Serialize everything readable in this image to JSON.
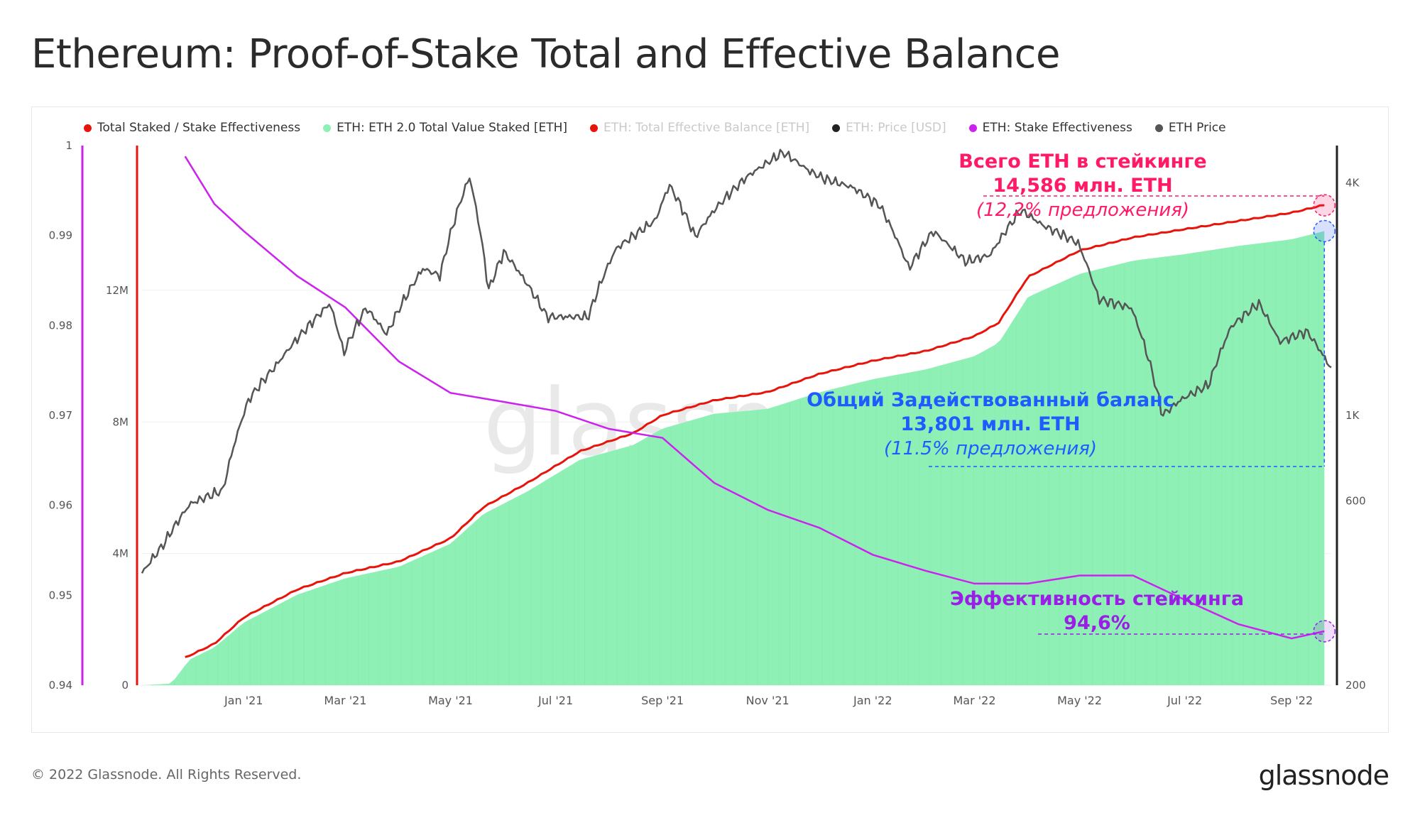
{
  "title": "Ethereum: Proof-of-Stake Total and Effective Balance",
  "footer": {
    "copyright": "© 2022 Glassnode. All Rights Reserved.",
    "brand": "glassnode"
  },
  "watermark": "glassnode",
  "legend": [
    {
      "label": "Total Staked / Stake Effectiveness",
      "color": "#e8140c",
      "dim": false
    },
    {
      "label": "ETH: ETH 2.0 Total Value Staked [ETH]",
      "color": "#8ff0b6",
      "dim": false
    },
    {
      "label": "ETH: Total Effective Balance [ETH]",
      "color": "#e8140c",
      "dim": true
    },
    {
      "label": "ETH: Price [USD]",
      "color": "#222222",
      "dim": true
    },
    {
      "label": "ETH: Stake Effectiveness",
      "color": "#cc22ee",
      "dim": false
    },
    {
      "label": "ETH Price",
      "color": "#555555",
      "dim": false
    }
  ],
  "annotations": {
    "total": {
      "line1": "Всего ETH в стейкинге",
      "line2": "14,586 млн. ETH",
      "line3": "(12,2% предложения)",
      "color": "#ff1a66"
    },
    "effective": {
      "line1": "Общий Задействованный баланс",
      "line2": "13,801 млн. ETH",
      "line3": "(11.5% предложения)",
      "color": "#1f5bff"
    },
    "efficiency": {
      "line1": "Эффективность стейкинга",
      "line2": "94,6%",
      "color": "#9b1ee6"
    }
  },
  "chart_data": {
    "type": "area+line",
    "x_range": [
      "2020-11-03",
      "2022-09-24"
    ],
    "x_ticks": [
      {
        "label": "Jan '21",
        "date": "2021-01-01"
      },
      {
        "label": "Mar '21",
        "date": "2021-03-01"
      },
      {
        "label": "May '21",
        "date": "2021-05-01"
      },
      {
        "label": "Jul '21",
        "date": "2021-07-01"
      },
      {
        "label": "Sep '21",
        "date": "2021-09-01"
      },
      {
        "label": "Nov '21",
        "date": "2021-11-01"
      },
      {
        "label": "Jan '22",
        "date": "2022-01-01"
      },
      {
        "label": "Mar '22",
        "date": "2022-03-01"
      },
      {
        "label": "May '22",
        "date": "2022-05-01"
      },
      {
        "label": "Jul '22",
        "date": "2022-07-01"
      },
      {
        "label": "Sep '22",
        "date": "2022-09-01"
      }
    ],
    "axes": {
      "effectiveness": {
        "side": "far-left",
        "range": [
          0.94,
          1.0
        ],
        "ticks": [
          "0.94",
          "0.95",
          "0.96",
          "0.97",
          "0.98",
          "0.99",
          "1"
        ]
      },
      "staked": {
        "side": "left",
        "range": [
          0,
          16400000
        ],
        "ticks": [
          {
            "v": 0,
            "label": "0"
          },
          {
            "v": 4000000,
            "label": "4M"
          },
          {
            "v": 8000000,
            "label": "8M"
          },
          {
            "v": 12000000,
            "label": "12M"
          }
        ]
      },
      "price": {
        "side": "right",
        "scale": "log",
        "range": [
          200,
          5000
        ],
        "ticks": [
          {
            "v": 200,
            "label": "200"
          },
          {
            "v": 600,
            "label": "600"
          },
          {
            "v": 1000,
            "label": "1K"
          },
          {
            "v": 4000,
            "label": "4K"
          }
        ]
      }
    },
    "series": [
      {
        "name": "ETH: ETH 2.0 Total Value Staked [ETH]",
        "type": "area",
        "color": "#8ff0b6",
        "points": [
          [
            "2020-11-03",
            0
          ],
          [
            "2020-11-20",
            50000
          ],
          [
            "2020-11-28",
            600000
          ],
          [
            "2020-12-01",
            790000
          ],
          [
            "2020-12-15",
            1150000
          ],
          [
            "2021-01-01",
            1900000
          ],
          [
            "2021-02-01",
            2750000
          ],
          [
            "2021-03-01",
            3250000
          ],
          [
            "2021-04-01",
            3600000
          ],
          [
            "2021-05-01",
            4300000
          ],
          [
            "2021-05-20",
            5200000
          ],
          [
            "2021-06-15",
            5900000
          ],
          [
            "2021-07-15",
            6850000
          ],
          [
            "2021-08-15",
            7300000
          ],
          [
            "2021-09-01",
            7800000
          ],
          [
            "2021-10-01",
            8250000
          ],
          [
            "2021-11-01",
            8400000
          ],
          [
            "2021-12-01",
            8900000
          ],
          [
            "2022-01-01",
            9300000
          ],
          [
            "2022-02-01",
            9600000
          ],
          [
            "2022-03-01",
            10000000
          ],
          [
            "2022-03-15",
            10400000
          ],
          [
            "2022-04-01",
            11800000
          ],
          [
            "2022-05-01",
            12500000
          ],
          [
            "2022-06-01",
            12900000
          ],
          [
            "2022-07-01",
            13100000
          ],
          [
            "2022-08-01",
            13350000
          ],
          [
            "2022-09-01",
            13550000
          ],
          [
            "2022-09-20",
            13801000
          ]
        ]
      },
      {
        "name": "Total Staked / Stake Effectiveness",
        "type": "line",
        "color": "#e8140c",
        "points": [
          [
            "2020-11-28",
            830000
          ],
          [
            "2020-12-15",
            1250000
          ],
          [
            "2021-01-01",
            2050000
          ],
          [
            "2021-02-01",
            2900000
          ],
          [
            "2021-03-01",
            3400000
          ],
          [
            "2021-04-01",
            3750000
          ],
          [
            "2021-05-01",
            4450000
          ],
          [
            "2021-05-20",
            5400000
          ],
          [
            "2021-06-15",
            6150000
          ],
          [
            "2021-07-15",
            7100000
          ],
          [
            "2021-08-15",
            7650000
          ],
          [
            "2021-09-01",
            8200000
          ],
          [
            "2021-10-01",
            8650000
          ],
          [
            "2021-11-01",
            8900000
          ],
          [
            "2021-12-01",
            9450000
          ],
          [
            "2022-01-01",
            9850000
          ],
          [
            "2022-02-01",
            10150000
          ],
          [
            "2022-03-01",
            10600000
          ],
          [
            "2022-03-15",
            11000000
          ],
          [
            "2022-04-01",
            12400000
          ],
          [
            "2022-05-01",
            13200000
          ],
          [
            "2022-06-01",
            13600000
          ],
          [
            "2022-07-01",
            13850000
          ],
          [
            "2022-08-01",
            14100000
          ],
          [
            "2022-09-01",
            14350000
          ],
          [
            "2022-09-20",
            14586000
          ]
        ]
      },
      {
        "name": "ETH: Stake Effectiveness",
        "type": "line",
        "axis": "effectiveness",
        "color": "#cc22ee",
        "points": [
          [
            "2020-11-28",
            0.9988
          ],
          [
            "2020-12-15",
            0.9935
          ],
          [
            "2021-01-01",
            0.9905
          ],
          [
            "2021-02-01",
            0.9855
          ],
          [
            "2021-03-01",
            0.982
          ],
          [
            "2021-04-01",
            0.976
          ],
          [
            "2021-05-01",
            0.9725
          ],
          [
            "2021-06-01",
            0.9715
          ],
          [
            "2021-07-01",
            0.9705
          ],
          [
            "2021-08-01",
            0.9685
          ],
          [
            "2021-09-01",
            0.9675
          ],
          [
            "2021-10-01",
            0.9625
          ],
          [
            "2021-11-01",
            0.9595
          ],
          [
            "2021-12-01",
            0.9575
          ],
          [
            "2022-01-01",
            0.9545
          ],
          [
            "2022-02-01",
            0.9527
          ],
          [
            "2022-03-01",
            0.9513
          ],
          [
            "2022-04-01",
            0.9513
          ],
          [
            "2022-05-01",
            0.9522
          ],
          [
            "2022-06-01",
            0.9522
          ],
          [
            "2022-07-01",
            0.9495
          ],
          [
            "2022-08-01",
            0.9468
          ],
          [
            "2022-09-01",
            0.9452
          ],
          [
            "2022-09-20",
            0.946
          ]
        ]
      },
      {
        "name": "ETH Price",
        "type": "line",
        "axis": "price",
        "color": "#555555",
        "points": [
          [
            "2020-11-03",
            390
          ],
          [
            "2020-11-15",
            460
          ],
          [
            "2020-12-01",
            590
          ],
          [
            "2020-12-20",
            640
          ],
          [
            "2021-01-04",
            1100
          ],
          [
            "2021-01-20",
            1350
          ],
          [
            "2021-02-10",
            1750
          ],
          [
            "2021-02-20",
            1950
          ],
          [
            "2021-02-28",
            1450
          ],
          [
            "2021-03-13",
            1900
          ],
          [
            "2021-03-25",
            1620
          ],
          [
            "2021-04-15",
            2400
          ],
          [
            "2021-04-25",
            2300
          ],
          [
            "2021-05-12",
            4150
          ],
          [
            "2021-05-23",
            2100
          ],
          [
            "2021-06-01",
            2650
          ],
          [
            "2021-06-20",
            2000
          ],
          [
            "2021-06-26",
            1800
          ],
          [
            "2021-07-20",
            1800
          ],
          [
            "2021-08-05",
            2700
          ],
          [
            "2021-08-28",
            3200
          ],
          [
            "2021-09-05",
            3950
          ],
          [
            "2021-09-20",
            2900
          ],
          [
            "2021-10-01",
            3400
          ],
          [
            "2021-10-20",
            4150
          ],
          [
            "2021-11-10",
            4800
          ],
          [
            "2021-11-25",
            4300
          ],
          [
            "2021-12-04",
            4100
          ],
          [
            "2021-12-20",
            3900
          ],
          [
            "2022-01-05",
            3500
          ],
          [
            "2022-01-22",
            2400
          ],
          [
            "2022-02-05",
            3000
          ],
          [
            "2022-02-24",
            2500
          ],
          [
            "2022-03-10",
            2600
          ],
          [
            "2022-03-28",
            3400
          ],
          [
            "2022-04-10",
            3100
          ],
          [
            "2022-04-30",
            2800
          ],
          [
            "2022-05-12",
            2000
          ],
          [
            "2022-05-31",
            1900
          ],
          [
            "2022-06-18",
            1000
          ],
          [
            "2022-06-29",
            1100
          ],
          [
            "2022-07-15",
            1200
          ],
          [
            "2022-07-28",
            1700
          ],
          [
            "2022-08-13",
            1950
          ],
          [
            "2022-08-25",
            1550
          ],
          [
            "2022-09-10",
            1650
          ],
          [
            "2022-09-24",
            1320
          ]
        ]
      }
    ]
  }
}
